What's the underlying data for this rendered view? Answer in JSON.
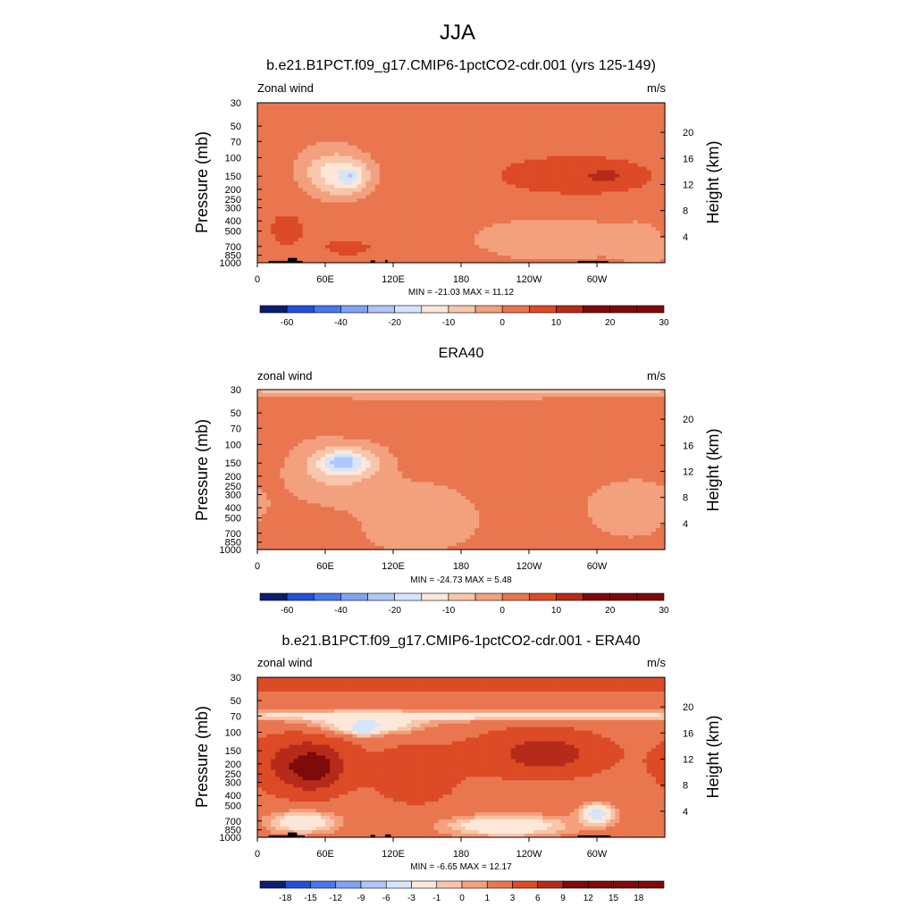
{
  "figure": {
    "title": "JJA",
    "colors": {
      "negative": [
        "#0b1e6e",
        "#2450d8",
        "#4878ec",
        "#7fa2f3",
        "#afc6f7",
        "#d6e5fa"
      ],
      "neutral": "#fde7d8",
      "positive": [
        "#f8c6aa",
        "#f2a07e",
        "#e9764f",
        "#dc4a26",
        "#b62a1a",
        "#7e0a0a"
      ],
      "land": "#000000",
      "frame": "#000000"
    }
  },
  "chart_data": [
    {
      "type": "heatmap",
      "title": "b.e21.B1PCT.f09_g17.CMIP6-1pctCO2-cdr.001 (yrs 125-149)",
      "left_label": "Zonal wind",
      "right_label": "m/s",
      "ylabel": "Pressure (mb)",
      "y2label": "Height (km)",
      "x_ticks": [
        "0",
        "60E",
        "120E",
        "180",
        "120W",
        "60W"
      ],
      "x_tick_values": [
        0,
        60,
        120,
        180,
        240,
        300
      ],
      "xlim": [
        0,
        360
      ],
      "y_ticks": [
        "30",
        "50",
        "70",
        "100",
        "150",
        "200",
        "250",
        "300",
        "400",
        "500",
        "700",
        "850",
        "1000"
      ],
      "y_tick_values": [
        30,
        50,
        70,
        100,
        150,
        200,
        250,
        300,
        400,
        500,
        700,
        850,
        1000
      ],
      "y2_ticks": [
        "20",
        "16",
        "12",
        "8",
        "4"
      ],
      "y2_tick_values": [
        20,
        16,
        12,
        8,
        4
      ],
      "ylim": [
        1000,
        30
      ],
      "y_scale": "log",
      "stats": "MIN = -21.03  MAX =  11.12",
      "colorbar": {
        "levels": [
          -70,
          -60,
          -50,
          -40,
          -30,
          -20,
          -15,
          -10,
          -5,
          0,
          5,
          10,
          15,
          20,
          25,
          30
        ],
        "labels": [
          "-60",
          "-40",
          "-20",
          "-10",
          "0",
          "10",
          "20",
          "30"
        ],
        "label_values": [
          -60,
          -40,
          -20,
          -10,
          0,
          10,
          20,
          30
        ]
      },
      "background_value": 2,
      "features": [
        {
          "lon": 65,
          "lev": 140,
          "dlon": 28,
          "dlog": 0.22,
          "value": -10
        },
        {
          "lon": 78,
          "lev": 150,
          "dlon": 18,
          "dlog": 0.14,
          "value": -16
        },
        {
          "lon": 83,
          "lev": 150,
          "dlon": 7,
          "dlog": 0.06,
          "value": -21
        },
        {
          "lon": 270,
          "lev": 145,
          "dlon": 75,
          "dlog": 0.22,
          "value": 7
        },
        {
          "lon": 300,
          "lev": 150,
          "dlon": 40,
          "dlog": 0.12,
          "value": 10
        },
        {
          "lon": 310,
          "lev": 150,
          "dlon": 12,
          "dlog": 0.06,
          "value": 11
        },
        {
          "lon": 260,
          "lev": 600,
          "dlon": 60,
          "dlog": 0.18,
          "value": -5
        },
        {
          "lon": 350,
          "lev": 650,
          "dlon": 30,
          "dlog": 0.2,
          "value": -5
        },
        {
          "lon": 80,
          "lev": 720,
          "dlon": 22,
          "dlog": 0.08,
          "value": 8
        },
        {
          "lon": 25,
          "lev": 500,
          "dlon": 30,
          "dlog": 0.3,
          "value": 6
        }
      ],
      "topography": [
        {
          "lon0": 10,
          "lon1": 40,
          "lev": 960
        },
        {
          "lon0": 27,
          "lon1": 35,
          "lev": 900
        },
        {
          "lon0": 100,
          "lon1": 104,
          "lev": 950
        },
        {
          "lon0": 113,
          "lon1": 115,
          "lev": 940
        },
        {
          "lon0": 283,
          "lon1": 310,
          "lev": 960
        }
      ]
    },
    {
      "type": "heatmap",
      "title": "ERA40",
      "left_label": "zonal wind",
      "right_label": "m/s",
      "ylabel": "Pressure (mb)",
      "y2label": "Height (km)",
      "x_ticks": [
        "0",
        "60E",
        "120E",
        "180",
        "120W",
        "60W"
      ],
      "x_tick_values": [
        0,
        60,
        120,
        180,
        240,
        300
      ],
      "xlim": [
        0,
        360
      ],
      "y_ticks": [
        "30",
        "50",
        "70",
        "100",
        "150",
        "200",
        "250",
        "300",
        "400",
        "500",
        "700",
        "850",
        "1000"
      ],
      "y_tick_values": [
        30,
        50,
        70,
        100,
        150,
        200,
        250,
        300,
        400,
        500,
        700,
        850,
        1000
      ],
      "y2_ticks": [
        "20",
        "16",
        "12",
        "8",
        "4"
      ],
      "y2_tick_values": [
        20,
        16,
        12,
        8,
        4
      ],
      "ylim": [
        1000,
        30
      ],
      "y_scale": "log",
      "stats": "MIN = -24.73  MAX =   5.48",
      "colorbar": {
        "levels": [
          -70,
          -60,
          -50,
          -40,
          -30,
          -20,
          -15,
          -10,
          -5,
          0,
          5,
          10,
          15,
          20,
          25,
          30
        ],
        "labels": [
          "-60",
          "-40",
          "-20",
          "-10",
          "0",
          "10",
          "20",
          "30"
        ],
        "label_values": [
          -60,
          -40,
          -20,
          -10,
          0,
          10,
          20,
          30
        ]
      },
      "background_value": 2,
      "features": [
        {
          "lon": 180,
          "lev": 30,
          "dlon": 400,
          "dlog": 0.07,
          "value": -7
        },
        {
          "lon": 70,
          "lev": 180,
          "dlon": 40,
          "dlog": 0.3,
          "value": -6
        },
        {
          "lon": 78,
          "lev": 150,
          "dlon": 25,
          "dlog": 0.12,
          "value": -18
        },
        {
          "lon": 75,
          "lev": 150,
          "dlon": 12,
          "dlog": 0.07,
          "value": -24
        },
        {
          "lon": 140,
          "lev": 500,
          "dlon": 50,
          "dlog": 0.3,
          "value": -5
        },
        {
          "lon": 330,
          "lev": 400,
          "dlon": 35,
          "dlog": 0.25,
          "value": -5
        },
        {
          "lon": 265,
          "lev": 120,
          "dlon": 55,
          "dlog": 0.22,
          "value": 5
        },
        {
          "lon": 105,
          "lev": 75,
          "dlon": 35,
          "dlog": 0.05,
          "value": 5
        },
        {
          "lon": 50,
          "lev": 650,
          "dlon": 30,
          "dlog": 0.15,
          "value": 5
        }
      ],
      "topography": []
    },
    {
      "type": "heatmap",
      "title": "b.e21.B1PCT.f09_g17.CMIP6-1pctCO2-cdr.001 - ERA40",
      "left_label": "zonal wind",
      "right_label": "m/s",
      "ylabel": "Pressure (mb)",
      "y2label": "Height (km)",
      "x_ticks": [
        "0",
        "60E",
        "120E",
        "180",
        "120W",
        "60W"
      ],
      "x_tick_values": [
        0,
        60,
        120,
        180,
        240,
        300
      ],
      "xlim": [
        0,
        360
      ],
      "y_ticks": [
        "30",
        "50",
        "70",
        "100",
        "150",
        "200",
        "250",
        "300",
        "400",
        "500",
        "700",
        "850",
        "1000"
      ],
      "y_tick_values": [
        30,
        50,
        70,
        100,
        150,
        200,
        250,
        300,
        400,
        500,
        700,
        850,
        1000
      ],
      "y2_ticks": [
        "20",
        "16",
        "12",
        "8",
        "4"
      ],
      "y2_tick_values": [
        20,
        16,
        12,
        8,
        4
      ],
      "ylim": [
        1000,
        30
      ],
      "y_scale": "log",
      "stats": "MIN =  -6.65  MAX =  12.17",
      "colorbar": {
        "levels": [
          -21,
          -18,
          -15,
          -12,
          -9,
          -6,
          -3,
          -1,
          0,
          1,
          3,
          6,
          9,
          12,
          15,
          18,
          21
        ],
        "labels": [
          "-18",
          "-15",
          "-12",
          "-9",
          "-6",
          "-3",
          "-1",
          "0",
          "1",
          "3",
          "6",
          "9",
          "12",
          "15",
          "18"
        ],
        "label_values": [
          -18,
          -15,
          -12,
          -9,
          -6,
          -3,
          -1,
          0,
          1,
          3,
          6,
          9,
          12,
          15,
          18
        ]
      },
      "background_value": 2,
      "features": [
        {
          "lon": 180,
          "lev": 32,
          "dlon": 400,
          "dlog": 0.1,
          "value": 6
        },
        {
          "lon": 180,
          "lev": 70,
          "dlon": 400,
          "dlog": 0.05,
          "value": -2
        },
        {
          "lon": 100,
          "lev": 85,
          "dlon": 50,
          "dlog": 0.1,
          "value": -4
        },
        {
          "lon": 95,
          "lev": 95,
          "dlon": 10,
          "dlog": 0.05,
          "value": -6.5
        },
        {
          "lon": 40,
          "lev": 200,
          "dlon": 40,
          "dlog": 0.25,
          "value": 8
        },
        {
          "lon": 50,
          "lev": 220,
          "dlon": 22,
          "dlog": 0.18,
          "value": 11
        },
        {
          "lon": 250,
          "lev": 160,
          "dlon": 60,
          "dlog": 0.22,
          "value": 6
        },
        {
          "lon": 255,
          "lev": 160,
          "dlon": 25,
          "dlog": 0.12,
          "value": 9
        },
        {
          "lon": 140,
          "lev": 250,
          "dlon": 45,
          "dlog": 0.35,
          "value": 4
        },
        {
          "lon": 220,
          "lev": 780,
          "dlon": 55,
          "dlog": 0.1,
          "value": -3
        },
        {
          "lon": 40,
          "lev": 720,
          "dlon": 30,
          "dlog": 0.1,
          "value": -3
        },
        {
          "lon": 300,
          "lev": 600,
          "dlon": 15,
          "dlog": 0.1,
          "value": -4
        }
      ],
      "topography": [
        {
          "lon0": 10,
          "lon1": 42,
          "lev": 960
        },
        {
          "lon0": 27,
          "lon1": 35,
          "lev": 900
        },
        {
          "lon0": 100,
          "lon1": 104,
          "lev": 950
        },
        {
          "lon0": 113,
          "lon1": 118,
          "lev": 940
        },
        {
          "lon0": 283,
          "lon1": 312,
          "lev": 960
        }
      ]
    }
  ]
}
